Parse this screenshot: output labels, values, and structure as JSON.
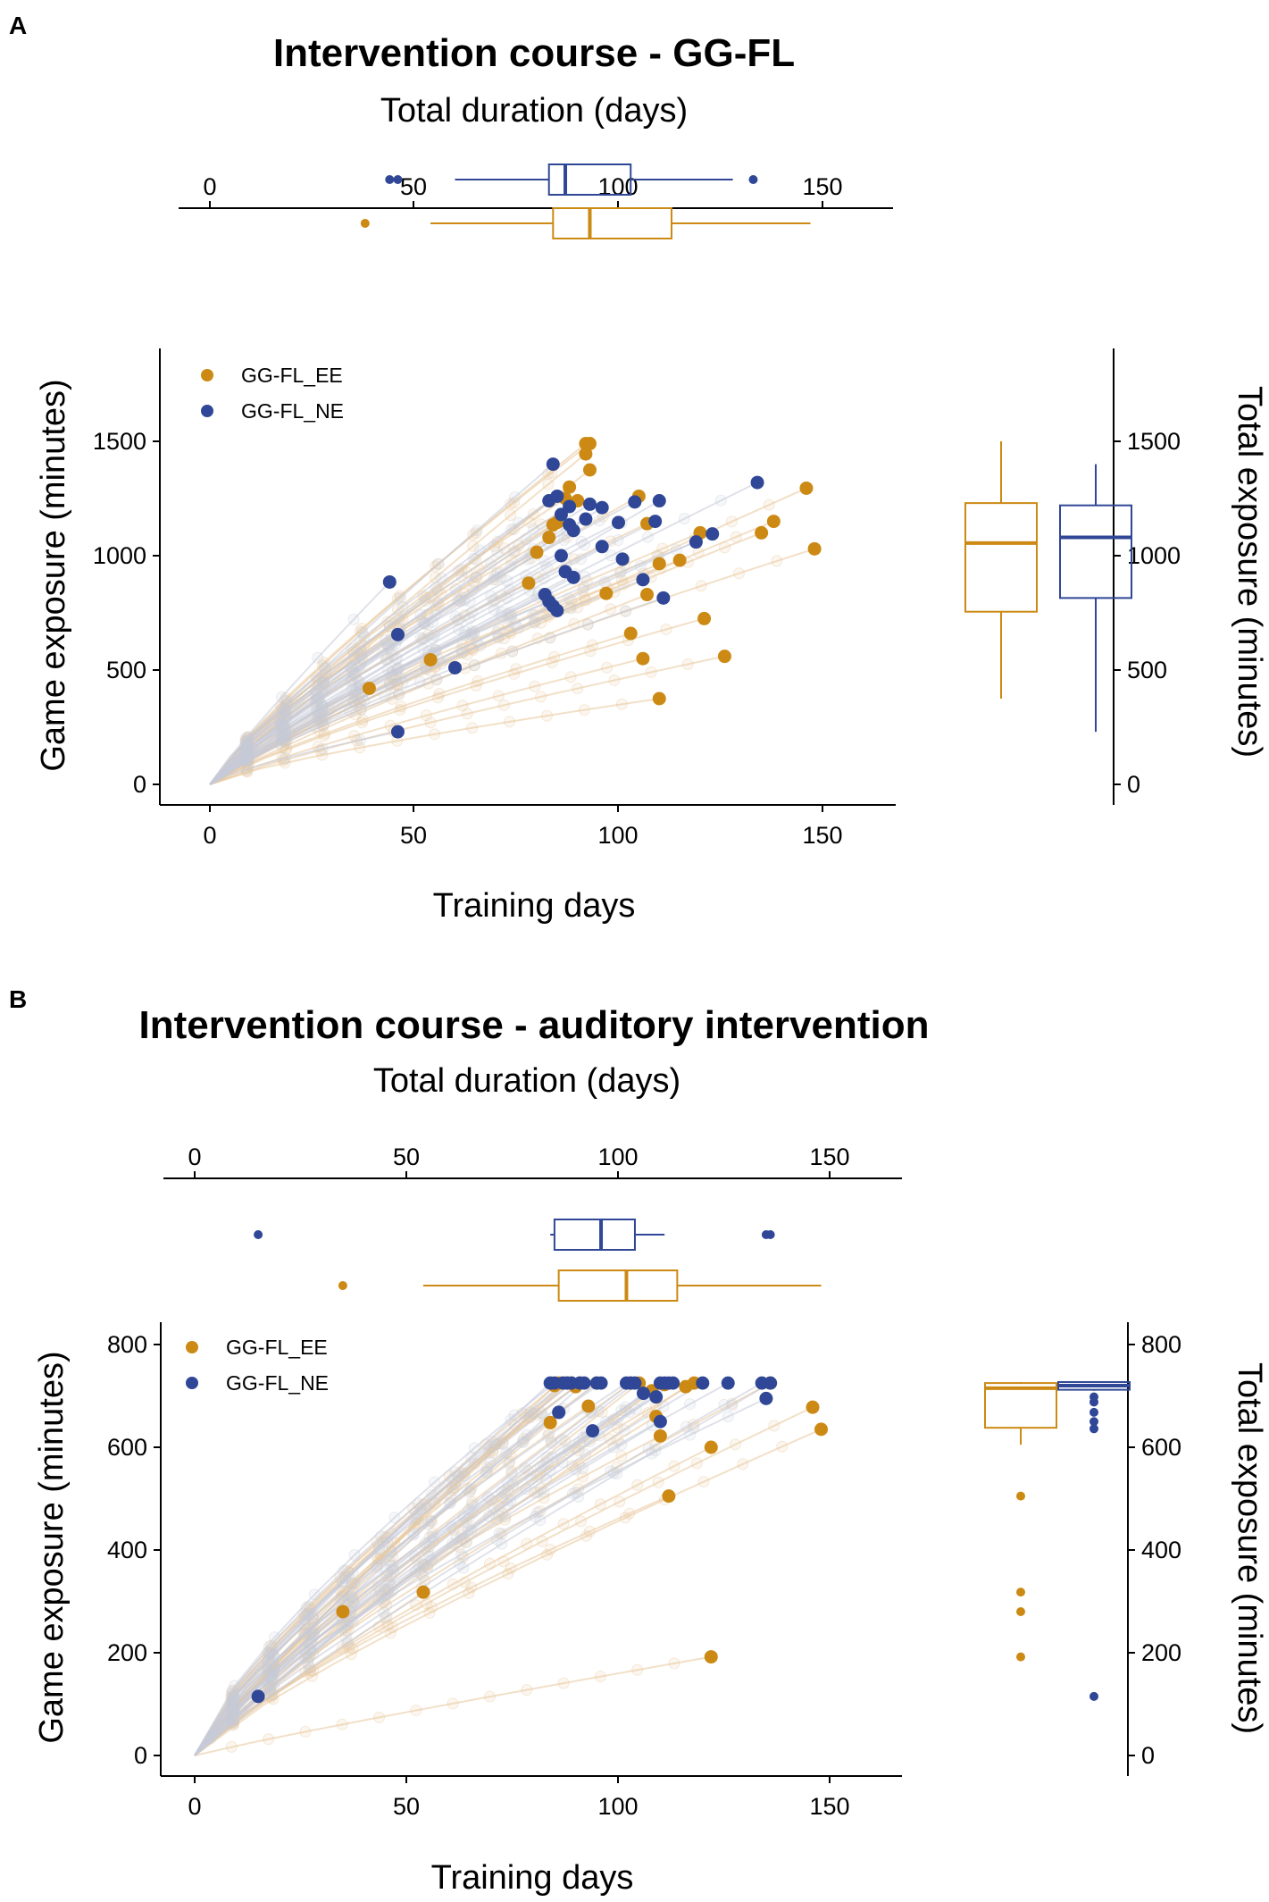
{
  "colors": {
    "ee": "#CC8A14",
    "ne": "#2F4796",
    "trace": "#C7CBD8",
    "trace_ee": "#E8C79A"
  },
  "chart_data": [
    {
      "panel_label": "A",
      "type": "scatter",
      "title": "Intervention course - GG-FL",
      "top_axis_title": "Total duration (days)",
      "xlabel": "Training days",
      "ylabel": "Game exposure (minutes)",
      "right_ylabel": "Total exposure (minutes)",
      "xlim": [
        -8,
        167
      ],
      "ylim": [
        -80,
        1890
      ],
      "xticks": [
        {
          "v": 0,
          "label": "0"
        },
        {
          "v": 50,
          "label": "50"
        },
        {
          "v": 100,
          "label": "100"
        },
        {
          "v": 150,
          "label": "150"
        }
      ],
      "yticks": [
        {
          "v": 0,
          "label": "0"
        },
        {
          "v": 500,
          "label": "500"
        },
        {
          "v": 1000,
          "label": "1000"
        },
        {
          "v": 1500,
          "label": "1500"
        }
      ],
      "legend": [
        {
          "key": "ee",
          "label": "GG-FL_EE"
        },
        {
          "key": "ne",
          "label": "GG-FL_NE"
        }
      ],
      "series": [
        {
          "key": "ee",
          "name": "GG-FL_EE",
          "points": [
            [
              39,
              420
            ],
            [
              54,
              545
            ],
            [
              78,
              880
            ],
            [
              80,
              1015
            ],
            [
              83,
              1080
            ],
            [
              84,
              1135
            ],
            [
              85,
              1145
            ],
            [
              87,
              1250
            ],
            [
              88,
              1300
            ],
            [
              90,
              1240
            ],
            [
              92,
              1490
            ],
            [
              92,
              1445
            ],
            [
              93,
              1375
            ],
            [
              93,
              1490
            ],
            [
              97,
              835
            ],
            [
              103,
              660
            ],
            [
              105,
              1260
            ],
            [
              106,
              550
            ],
            [
              107,
              1140
            ],
            [
              107,
              830
            ],
            [
              110,
              375
            ],
            [
              110,
              965
            ],
            [
              115,
              980
            ],
            [
              120,
              1100
            ],
            [
              121,
              725
            ],
            [
              126,
              560
            ],
            [
              135,
              1100
            ],
            [
              138,
              1150
            ],
            [
              146,
              1295
            ],
            [
              148,
              1030
            ]
          ]
        },
        {
          "key": "ne",
          "name": "GG-FL_NE",
          "points": [
            [
              44,
              885
            ],
            [
              46,
              655
            ],
            [
              46,
              230
            ],
            [
              60,
              510
            ],
            [
              82,
              830
            ],
            [
              83,
              800
            ],
            [
              83,
              1240
            ],
            [
              84,
              780
            ],
            [
              84,
              1400
            ],
            [
              85,
              1260
            ],
            [
              85,
              760
            ],
            [
              86,
              1180
            ],
            [
              86,
              1000
            ],
            [
              87,
              930
            ],
            [
              88,
              1215
            ],
            [
              88,
              1135
            ],
            [
              89,
              1110
            ],
            [
              89,
              905
            ],
            [
              92,
              1160
            ],
            [
              93,
              1225
            ],
            [
              96,
              1210
            ],
            [
              96,
              1040
            ],
            [
              100,
              1145
            ],
            [
              101,
              985
            ],
            [
              104,
              1235
            ],
            [
              106,
              895
            ],
            [
              109,
              1150
            ],
            [
              110,
              1240
            ],
            [
              111,
              815
            ],
            [
              119,
              1060
            ],
            [
              123,
              1095
            ],
            [
              134,
              1320
            ]
          ]
        }
      ],
      "duration_boxplots": [
        {
          "key": "ne",
          "whisker_low": 60,
          "q1": 83,
          "median": 87,
          "q3": 103,
          "whisker_high": 128,
          "outliers": [
            44,
            46,
            133
          ]
        },
        {
          "key": "ee",
          "whisker_low": 54,
          "q1": 84,
          "median": 93,
          "q3": 113,
          "whisker_high": 147,
          "outliers": [
            38
          ]
        }
      ],
      "exposure_boxplots": [
        {
          "key": "ee",
          "whisker_low": 375,
          "q1": 755,
          "median": 1055,
          "q3": 1230,
          "whisker_high": 1500,
          "outliers": []
        },
        {
          "key": "ne",
          "whisker_low": 230,
          "q1": 815,
          "median": 1080,
          "q3": 1220,
          "whisker_high": 1400,
          "outliers": []
        }
      ]
    },
    {
      "panel_label": "B",
      "type": "scatter",
      "title": "Intervention course - auditory intervention",
      "top_axis_title": "Total duration (days)",
      "xlabel": "Training days",
      "ylabel": "Game exposure (minutes)",
      "right_ylabel": "Total exposure (minutes)",
      "xlim": [
        -8,
        167
      ],
      "ylim": [
        -40,
        840
      ],
      "xticks": [
        {
          "v": 0,
          "label": "0"
        },
        {
          "v": 50,
          "label": "50"
        },
        {
          "v": 100,
          "label": "100"
        },
        {
          "v": 150,
          "label": "150"
        }
      ],
      "yticks": [
        {
          "v": 0,
          "label": "0"
        },
        {
          "v": 200,
          "label": "200"
        },
        {
          "v": 400,
          "label": "400"
        },
        {
          "v": 600,
          "label": "600"
        },
        {
          "v": 800,
          "label": "800"
        }
      ],
      "legend": [
        {
          "key": "ee",
          "label": "GG-FL_EE"
        },
        {
          "key": "ne",
          "label": "GG-FL_NE"
        }
      ],
      "series": [
        {
          "key": "ee",
          "name": "GG-FL_EE",
          "points": [
            [
              35,
              280
            ],
            [
              54,
              318
            ],
            [
              84,
              648
            ],
            [
              85,
              720
            ],
            [
              86,
              725
            ],
            [
              87,
              725
            ],
            [
              88,
              725
            ],
            [
              88,
              725
            ],
            [
              89,
              725
            ],
            [
              90,
              718
            ],
            [
              91,
              725
            ],
            [
              93,
              680
            ],
            [
              95,
              725
            ],
            [
              103,
              725
            ],
            [
              105,
              725
            ],
            [
              108,
              710
            ],
            [
              109,
              660
            ],
            [
              110,
              622
            ],
            [
              111,
              722
            ],
            [
              112,
              505
            ],
            [
              116,
              718
            ],
            [
              118,
              725
            ],
            [
              122,
              600
            ],
            [
              122,
              192
            ],
            [
              136,
              725
            ],
            [
              146,
              678
            ],
            [
              148,
              635
            ]
          ]
        },
        {
          "key": "ne",
          "name": "GG-FL_NE",
          "points": [
            [
              15,
              115
            ],
            [
              84,
              725
            ],
            [
              85,
              725
            ],
            [
              86,
              668
            ],
            [
              87,
              725
            ],
            [
              88,
              725
            ],
            [
              89,
              725
            ],
            [
              91,
              725
            ],
            [
              92,
              725
            ],
            [
              94,
              632
            ],
            [
              95,
              725
            ],
            [
              96,
              725
            ],
            [
              102,
              725
            ],
            [
              103,
              725
            ],
            [
              104,
              725
            ],
            [
              106,
              705
            ],
            [
              109,
              698
            ],
            [
              110,
              725
            ],
            [
              110,
              650
            ],
            [
              111,
              725
            ],
            [
              112,
              725
            ],
            [
              113,
              725
            ],
            [
              120,
              725
            ],
            [
              126,
              725
            ],
            [
              134,
              725
            ],
            [
              135,
              695
            ],
            [
              136,
              725
            ]
          ]
        }
      ],
      "duration_boxplots": [
        {
          "key": "ne",
          "whisker_low": 84,
          "q1": 85,
          "median": 96,
          "q3": 104,
          "whisker_high": 111,
          "outliers": [
            15,
            135,
            136
          ]
        },
        {
          "key": "ee",
          "whisker_low": 54,
          "q1": 86,
          "median": 102,
          "q3": 114,
          "whisker_high": 148,
          "outliers": [
            35
          ]
        }
      ],
      "exposure_boxplots": [
        {
          "key": "ee",
          "whisker_low": 605,
          "q1": 638,
          "median": 715,
          "q3": 725,
          "whisker_high": 727,
          "outliers": [
            505,
            318,
            280,
            192
          ]
        },
        {
          "key": "ne",
          "whisker_low": 710,
          "q1": 712,
          "median": 720,
          "q3": 727,
          "whisker_high": 727,
          "outliers": [
            698,
            688,
            668,
            650,
            636,
            115
          ]
        }
      ]
    }
  ]
}
